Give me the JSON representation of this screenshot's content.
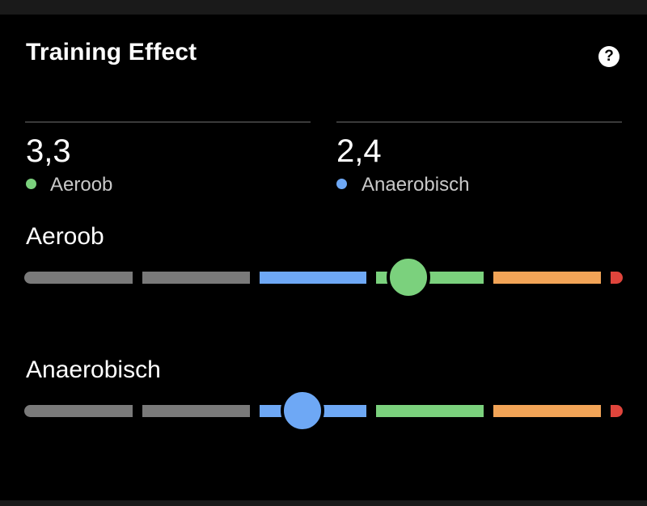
{
  "card": {
    "title": "Training Effect",
    "help_icon": "question-icon",
    "help_glyph": "?"
  },
  "metrics": [
    {
      "value": "3,3",
      "label": "Aeroob",
      "color": "#7bd17d"
    },
    {
      "value": "2,4",
      "label": "Anaerobisch",
      "color": "#6ea8f5"
    }
  ],
  "scales": [
    {
      "label": "Aeroob",
      "value": 3.3,
      "marker_color": "#7bd17d"
    },
    {
      "label": "Anaerobisch",
      "value": 2.4,
      "marker_color": "#6ea8f5"
    }
  ],
  "scale_colors": {
    "segment_1": "#7a7a7a",
    "segment_2": "#7a7a7a",
    "segment_3": "#6ea8f5",
    "segment_4": "#7bd17d",
    "segment_5": "#f2a457",
    "segment_6": "#e0453c"
  }
}
